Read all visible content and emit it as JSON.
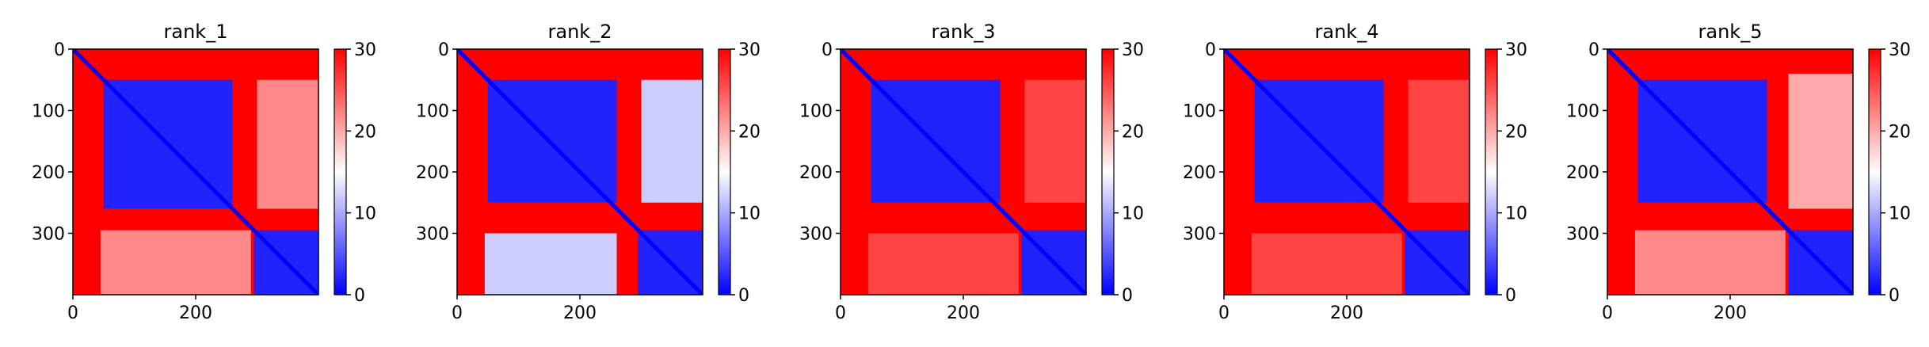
{
  "figure": {
    "colors": {
      "cmap_low": "#0000ff",
      "cmap_mid": "#ffffff",
      "cmap_high": "#ff0000",
      "axis": "#000000",
      "background": "#ffffff"
    }
  },
  "chart_data": [
    {
      "type": "heatmap",
      "title": "rank_1",
      "matrix_size": 400,
      "xlim": [
        0,
        400
      ],
      "ylim": [
        400,
        0
      ],
      "x_ticks": [
        0,
        200
      ],
      "y_ticks": [
        0,
        100,
        200,
        300
      ],
      "colorbar": {
        "range": [
          0,
          30
        ],
        "ticks": [
          0,
          10,
          20,
          30
        ]
      },
      "blocks": [
        {
          "rows": [
            50,
            260
          ],
          "cols": [
            50,
            260
          ],
          "value": 2
        },
        {
          "rows": [
            295,
            400
          ],
          "cols": [
            295,
            400
          ],
          "value": 2
        },
        {
          "rows": [
            50,
            260
          ],
          "cols": [
            300,
            400
          ],
          "value": 22
        },
        {
          "rows": [
            295,
            400
          ],
          "cols": [
            45,
            290
          ],
          "value": 22
        }
      ],
      "background_value": 30
    },
    {
      "type": "heatmap",
      "title": "rank_2",
      "matrix_size": 400,
      "xlim": [
        0,
        400
      ],
      "ylim": [
        400,
        0
      ],
      "x_ticks": [
        0,
        200
      ],
      "y_ticks": [
        0,
        100,
        200,
        300
      ],
      "colorbar": {
        "range": [
          0,
          30
        ],
        "ticks": [
          0,
          10,
          20,
          30
        ]
      },
      "blocks": [
        {
          "rows": [
            50,
            250
          ],
          "cols": [
            50,
            260
          ],
          "value": 2
        },
        {
          "rows": [
            295,
            400
          ],
          "cols": [
            295,
            400
          ],
          "value": 2
        },
        {
          "rows": [
            50,
            250
          ],
          "cols": [
            300,
            400
          ],
          "value": 12
        },
        {
          "rows": [
            300,
            400
          ],
          "cols": [
            45,
            260
          ],
          "value": 12
        }
      ],
      "background_value": 30
    },
    {
      "type": "heatmap",
      "title": "rank_3",
      "matrix_size": 400,
      "xlim": [
        0,
        400
      ],
      "ylim": [
        400,
        0
      ],
      "x_ticks": [
        0,
        200
      ],
      "y_ticks": [
        0,
        100,
        200,
        300
      ],
      "colorbar": {
        "range": [
          0,
          30
        ],
        "ticks": [
          0,
          10,
          20,
          30
        ]
      },
      "blocks": [
        {
          "rows": [
            50,
            250
          ],
          "cols": [
            50,
            260
          ],
          "value": 2
        },
        {
          "rows": [
            295,
            400
          ],
          "cols": [
            295,
            400
          ],
          "value": 2
        },
        {
          "rows": [
            50,
            250
          ],
          "cols": [
            300,
            400
          ],
          "value": 26
        },
        {
          "rows": [
            300,
            400
          ],
          "cols": [
            45,
            290
          ],
          "value": 26
        }
      ],
      "background_value": 30
    },
    {
      "type": "heatmap",
      "title": "rank_4",
      "matrix_size": 400,
      "xlim": [
        0,
        400
      ],
      "ylim": [
        400,
        0
      ],
      "x_ticks": [
        0,
        200
      ],
      "y_ticks": [
        0,
        100,
        200,
        300
      ],
      "colorbar": {
        "range": [
          0,
          30
        ],
        "ticks": [
          0,
          10,
          20,
          30
        ]
      },
      "blocks": [
        {
          "rows": [
            50,
            250
          ],
          "cols": [
            50,
            260
          ],
          "value": 2
        },
        {
          "rows": [
            295,
            400
          ],
          "cols": [
            295,
            400
          ],
          "value": 2
        },
        {
          "rows": [
            50,
            250
          ],
          "cols": [
            300,
            400
          ],
          "value": 26
        },
        {
          "rows": [
            300,
            400
          ],
          "cols": [
            45,
            290
          ],
          "value": 26
        }
      ],
      "background_value": 30
    },
    {
      "type": "heatmap",
      "title": "rank_5",
      "matrix_size": 400,
      "xlim": [
        0,
        400
      ],
      "ylim": [
        400,
        0
      ],
      "x_ticks": [
        0,
        200
      ],
      "y_ticks": [
        0,
        100,
        200,
        300
      ],
      "colorbar": {
        "range": [
          0,
          30
        ],
        "ticks": [
          0,
          10,
          20,
          30
        ]
      },
      "blocks": [
        {
          "rows": [
            50,
            250
          ],
          "cols": [
            50,
            260
          ],
          "value": 2
        },
        {
          "rows": [
            295,
            400
          ],
          "cols": [
            295,
            400
          ],
          "value": 2
        },
        {
          "rows": [
            40,
            260
          ],
          "cols": [
            295,
            400
          ],
          "value": 20
        },
        {
          "rows": [
            295,
            400
          ],
          "cols": [
            45,
            290
          ],
          "value": 22
        }
      ],
      "background_value": 30
    }
  ]
}
